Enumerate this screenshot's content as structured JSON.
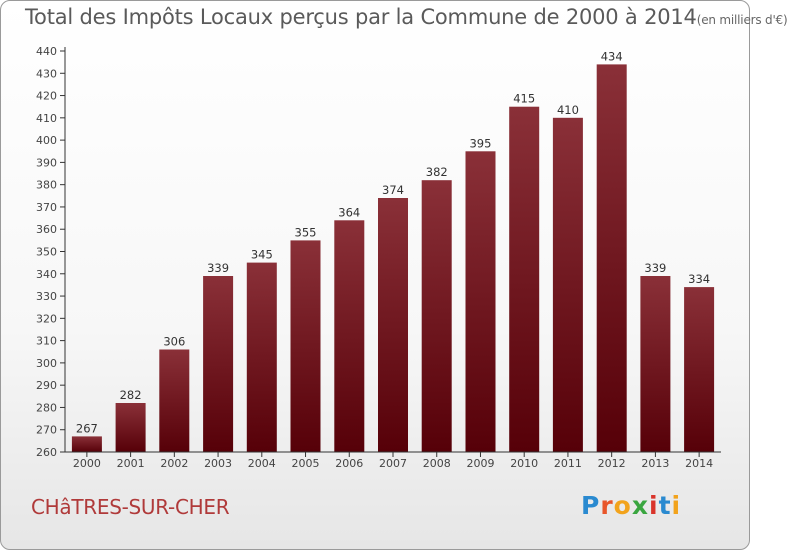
{
  "title": "Total des Impôts Locaux perçus par la Commune de 2000 à 2014",
  "title_unit": "(en milliers d'€)",
  "commune": "CHâTRES-SUR-CHER",
  "brand": "Proxiti",
  "brand_letters": [
    {
      "ch": "P",
      "color": "#2a8ad0"
    },
    {
      "ch": "r",
      "color": "#e8562a"
    },
    {
      "ch": "o",
      "color": "#f2a31c"
    },
    {
      "ch": "x",
      "color": "#3aa640"
    },
    {
      "ch": "i",
      "color": "#d9342b"
    },
    {
      "ch": "t",
      "color": "#2a8ad0"
    },
    {
      "ch": "i",
      "color": "#f2a31c"
    }
  ],
  "colors": {
    "bar_top": "#8a3038",
    "bar_bottom": "#560008",
    "axis": "#333333",
    "commune": "#b03a3a"
  },
  "chart_data": {
    "type": "bar",
    "title": "Total des Impôts Locaux perçus par la Commune de 2000 à 2014 (en milliers d'€)",
    "xlabel": "",
    "ylabel": "",
    "categories": [
      "2000",
      "2001",
      "2002",
      "2003",
      "2004",
      "2005",
      "2006",
      "2007",
      "2008",
      "2009",
      "2010",
      "2011",
      "2012",
      "2013",
      "2014"
    ],
    "values": [
      267,
      282,
      306,
      339,
      345,
      355,
      364,
      374,
      382,
      395,
      415,
      410,
      434,
      339,
      334
    ],
    "ylim": [
      260,
      440
    ],
    "yticks": [
      260,
      270,
      280,
      290,
      300,
      310,
      320,
      330,
      340,
      350,
      360,
      370,
      380,
      390,
      400,
      410,
      420,
      430,
      440
    ],
    "grid": false
  }
}
